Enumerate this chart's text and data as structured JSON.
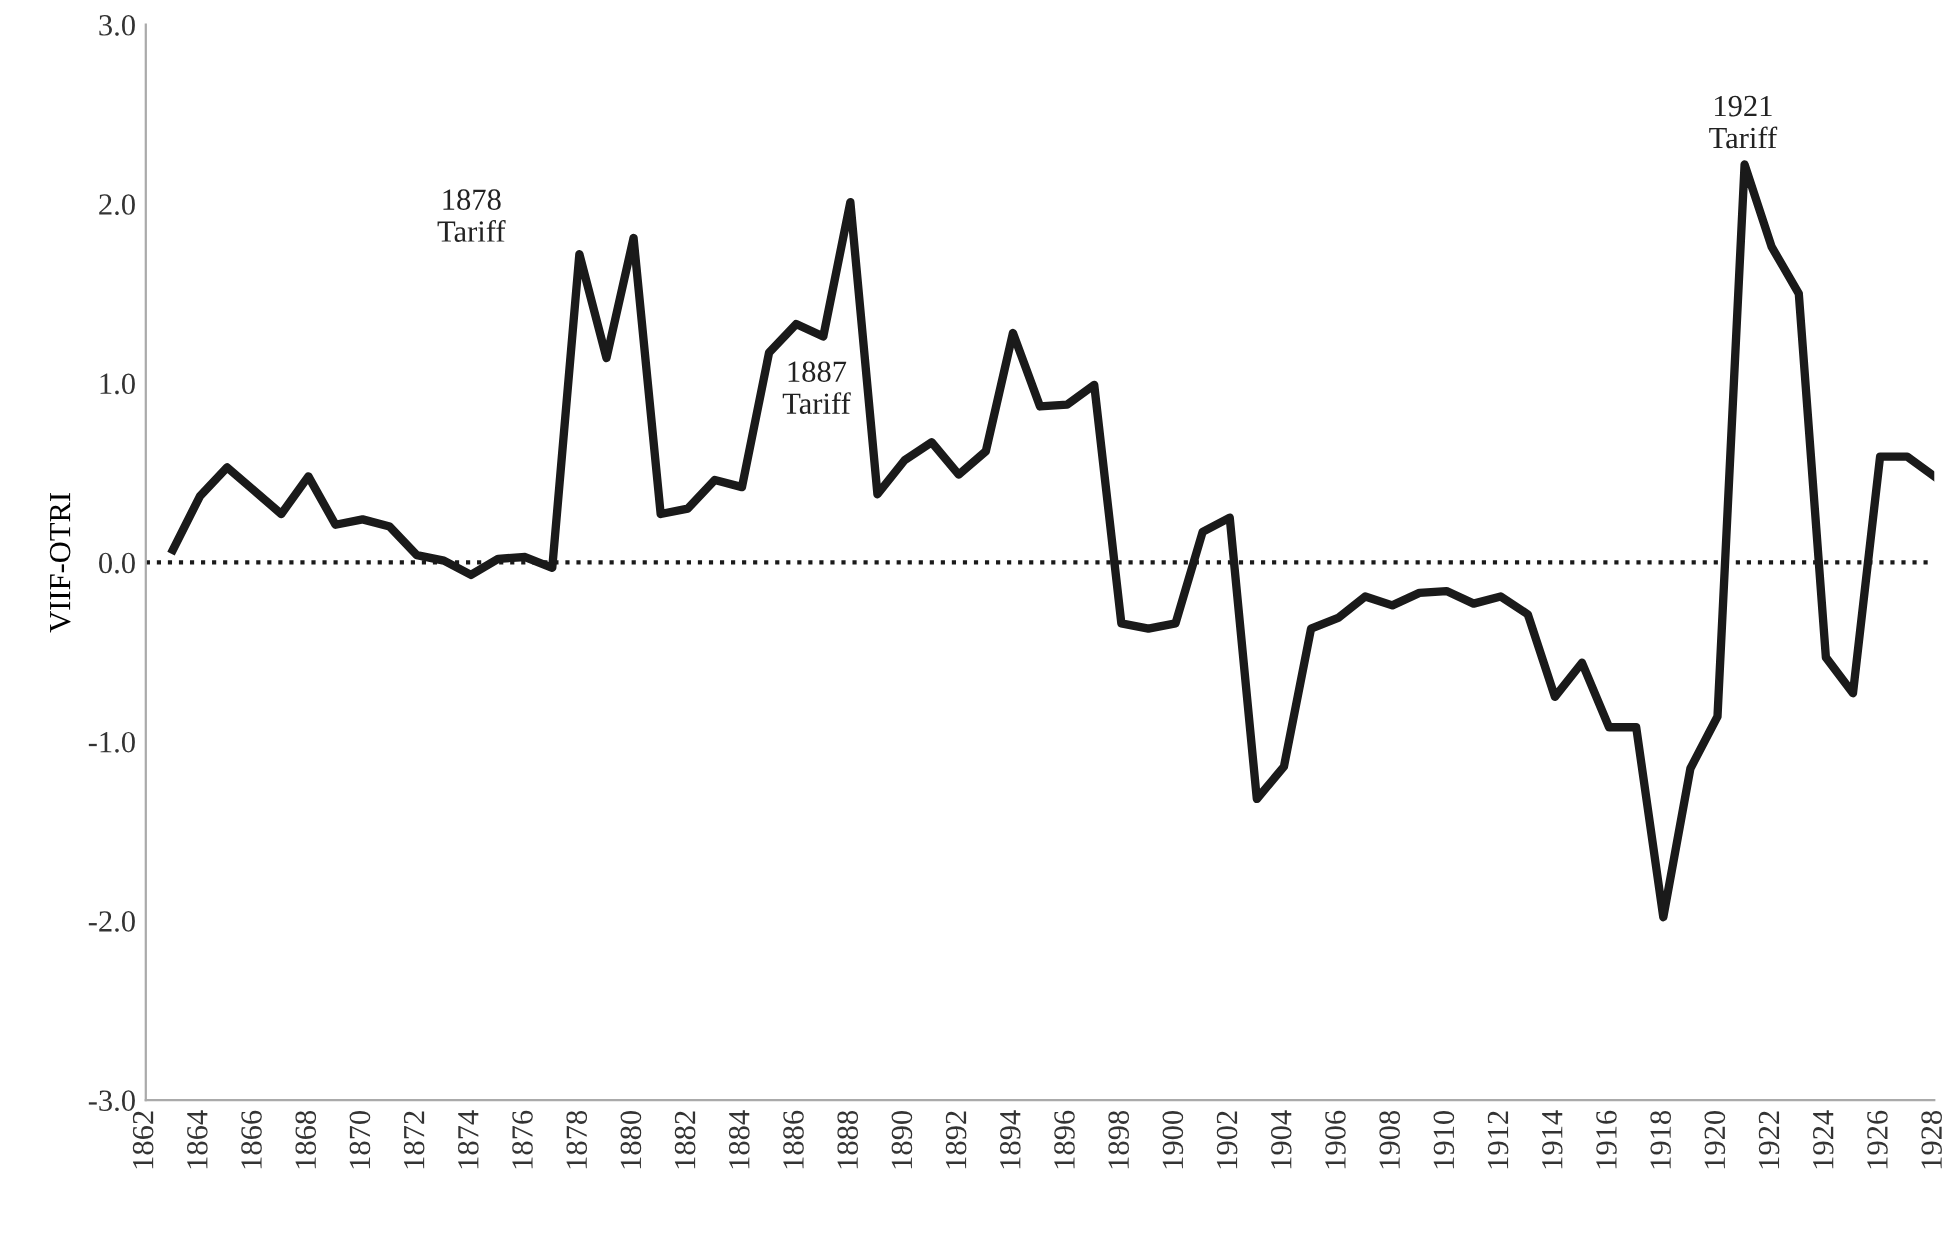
{
  "chart_data": {
    "type": "line",
    "ylabel": "VIIF-OTRI",
    "x": [
      1863,
      1864,
      1865,
      1866,
      1867,
      1868,
      1869,
      1870,
      1871,
      1872,
      1873,
      1874,
      1875,
      1876,
      1877,
      1878,
      1879,
      1880,
      1881,
      1882,
      1883,
      1884,
      1885,
      1886,
      1887,
      1888,
      1889,
      1890,
      1891,
      1892,
      1893,
      1894,
      1895,
      1896,
      1897,
      1898,
      1899,
      1900,
      1901,
      1902,
      1903,
      1904,
      1905,
      1906,
      1907,
      1908,
      1909,
      1910,
      1911,
      1912,
      1913,
      1914,
      1915,
      1916,
      1917,
      1918,
      1919,
      1920,
      1921,
      1922,
      1923,
      1924,
      1925,
      1926,
      1927,
      1928
    ],
    "series": [
      {
        "color": "#1a1a1a",
        "values": [
          0.07,
          0.37,
          0.53,
          0.4,
          0.27,
          0.48,
          0.21,
          0.24,
          0.2,
          0.04,
          0.01,
          -0.07,
          0.02,
          0.03,
          -0.03,
          1.72,
          1.14,
          1.81,
          0.27,
          0.3,
          0.46,
          0.42,
          1.17,
          1.33,
          1.26,
          2.01,
          0.38,
          0.57,
          0.67,
          0.49,
          0.62,
          1.28,
          0.87,
          0.88,
          0.99,
          -0.34,
          -0.37,
          -0.34,
          0.17,
          0.25,
          -1.32,
          -1.14,
          -0.37,
          -0.31,
          -0.19,
          -0.24,
          -0.17,
          -0.16,
          -0.23,
          -0.19,
          -0.29,
          -0.75,
          -0.56,
          -0.92,
          -0.92,
          -1.98,
          -1.15,
          -0.86,
          2.22,
          1.76,
          1.5,
          -0.53,
          -0.73,
          0.59,
          0.59,
          0.48
        ]
      }
    ],
    "xlim": [
      1862,
      1928
    ],
    "xticks": [
      1862,
      1864,
      1866,
      1868,
      1870,
      1872,
      1874,
      1876,
      1878,
      1880,
      1882,
      1884,
      1886,
      1888,
      1890,
      1892,
      1894,
      1896,
      1898,
      1900,
      1902,
      1904,
      1906,
      1908,
      1910,
      1912,
      1914,
      1916,
      1918,
      1920,
      1922,
      1924,
      1926,
      1928
    ],
    "ylim": [
      -3,
      3
    ],
    "yticks": [
      {
        "value": 3,
        "label": "3.0"
      },
      {
        "value": 2,
        "label": "2.0"
      },
      {
        "value": 1,
        "label": "1.0"
      },
      {
        "value": 0,
        "label": "0.0"
      },
      {
        "value": -1,
        "label": "-1.0"
      },
      {
        "value": -2,
        "label": "-2.0"
      },
      {
        "value": -3,
        "label": "-3.0"
      }
    ],
    "ref_lines": [
      {
        "axis": "y",
        "value": 0,
        "line_style": "dotted",
        "color": "#1a1a1a"
      }
    ],
    "annotations": [
      "1878\nTariff",
      "1887\nTariff",
      "1921\nTariff"
    ],
    "grid": false,
    "legend": false,
    "marker": "none",
    "line_style": "solid"
  }
}
